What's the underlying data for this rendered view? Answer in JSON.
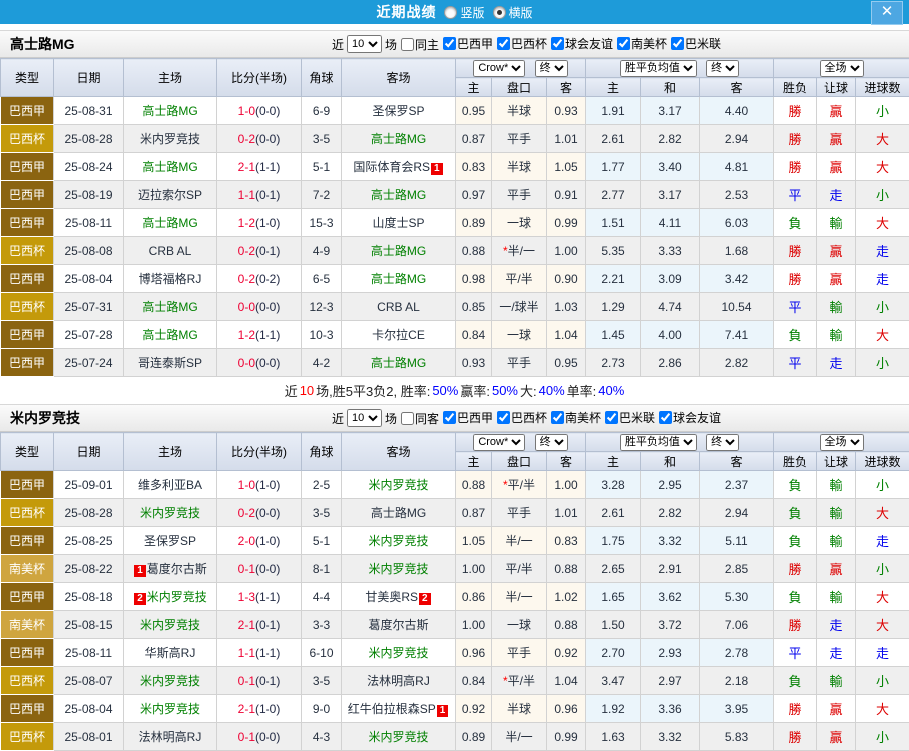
{
  "topbar": {
    "title": "近期战绩",
    "vertical": "竖版",
    "horizontal": "横版",
    "close": "✕"
  },
  "labels": {
    "near": "近",
    "games": "10",
    "games_suffix": "场"
  },
  "columns": {
    "type": "类型",
    "date": "日期",
    "home": "主场",
    "score": "比分(半场)",
    "corner": "角球",
    "away": "客场",
    "ah_home": "主",
    "ah_line": "盘口",
    "ah_away": "客",
    "eu_home": "主",
    "eu_draw": "和",
    "eu_away": "客",
    "res_wdl": "胜负",
    "res_ah": "让球",
    "res_goal": "进球数"
  },
  "dropdowns": {
    "odds_source": "Crow*",
    "final": "终",
    "wdl_avg": "胜平负均值",
    "full": "全场"
  },
  "league_colors": {
    "巴西甲": "#8B6410",
    "巴西杯": "#C49A0A",
    "南美杯": "#CFA53F"
  },
  "result_colors": {
    "red": "#DD0000",
    "blue": "#0000EE",
    "green": "#008000"
  },
  "score_colors": {
    "fulltime": "#EE0033",
    "halftime": "#222A44"
  },
  "sections": [
    {
      "team": "高士路MG",
      "filter": {
        "same": "同主",
        "same_checked": false,
        "leagues": [
          "巴西甲",
          "巴西杯",
          "球会友谊",
          "南美杯",
          "巴米联"
        ]
      },
      "rows": [
        {
          "lg": "巴西甲",
          "date": "25-08-31",
          "home": {
            "n": "高士路MG",
            "g": true
          },
          "ft": "1-0",
          "ht": "(0-0)",
          "cn": "6-9",
          "away": {
            "n": "圣保罗SP"
          },
          "ah": [
            "0.95",
            "半球",
            "0.93"
          ],
          "star": false,
          "eu": [
            "1.91",
            "3.17",
            "4.40"
          ],
          "res": [
            [
              "勝",
              "red"
            ],
            [
              "贏",
              "red"
            ],
            [
              "小",
              "green"
            ]
          ]
        },
        {
          "lg": "巴西杯",
          "date": "25-08-28",
          "home": {
            "n": "米内罗竞技"
          },
          "ft": "0-2",
          "ht": "(0-0)",
          "cn": "3-5",
          "away": {
            "n": "高士路MG",
            "g": true
          },
          "ah": [
            "0.87",
            "平手",
            "1.01"
          ],
          "star": false,
          "eu": [
            "2.61",
            "2.82",
            "2.94"
          ],
          "res": [
            [
              "勝",
              "red"
            ],
            [
              "贏",
              "red"
            ],
            [
              "大",
              "red"
            ]
          ]
        },
        {
          "lg": "巴西甲",
          "date": "25-08-24",
          "home": {
            "n": "高士路MG",
            "g": true
          },
          "ft": "2-1",
          "ht": "(1-1)",
          "cn": "5-1",
          "away": {
            "n": "国际体育会RS",
            "ba": "1"
          },
          "ah": [
            "0.83",
            "半球",
            "1.05"
          ],
          "star": false,
          "eu": [
            "1.77",
            "3.40",
            "4.81"
          ],
          "res": [
            [
              "勝",
              "red"
            ],
            [
              "贏",
              "red"
            ],
            [
              "大",
              "red"
            ]
          ]
        },
        {
          "lg": "巴西甲",
          "date": "25-08-19",
          "home": {
            "n": "迈拉索尔SP"
          },
          "ft": "1-1",
          "ht": "(0-1)",
          "cn": "7-2",
          "away": {
            "n": "高士路MG",
            "g": true
          },
          "ah": [
            "0.97",
            "平手",
            "0.91"
          ],
          "star": false,
          "eu": [
            "2.77",
            "3.17",
            "2.53"
          ],
          "res": [
            [
              "平",
              "blue"
            ],
            [
              "走",
              "blue"
            ],
            [
              "小",
              "green"
            ]
          ]
        },
        {
          "lg": "巴西甲",
          "date": "25-08-11",
          "home": {
            "n": "高士路MG",
            "g": true
          },
          "ft": "1-2",
          "ht": "(1-0)",
          "cn": "15-3",
          "away": {
            "n": "山度士SP"
          },
          "ah": [
            "0.89",
            "一球",
            "0.99"
          ],
          "star": false,
          "eu": [
            "1.51",
            "4.11",
            "6.03"
          ],
          "res": [
            [
              "負",
              "green"
            ],
            [
              "輸",
              "green"
            ],
            [
              "大",
              "red"
            ]
          ]
        },
        {
          "lg": "巴西杯",
          "date": "25-08-08",
          "home": {
            "n": "CRB AL"
          },
          "ft": "0-2",
          "ht": "(0-1)",
          "cn": "4-9",
          "away": {
            "n": "高士路MG",
            "g": true
          },
          "ah": [
            "0.88",
            "半/一",
            "1.00"
          ],
          "star": true,
          "eu": [
            "5.35",
            "3.33",
            "1.68"
          ],
          "res": [
            [
              "勝",
              "red"
            ],
            [
              "贏",
              "red"
            ],
            [
              "走",
              "blue"
            ]
          ]
        },
        {
          "lg": "巴西甲",
          "date": "25-08-04",
          "home": {
            "n": "博塔福格RJ"
          },
          "ft": "0-2",
          "ht": "(0-2)",
          "cn": "6-5",
          "away": {
            "n": "高士路MG",
            "g": true
          },
          "ah": [
            "0.98",
            "平/半",
            "0.90"
          ],
          "star": false,
          "eu": [
            "2.21",
            "3.09",
            "3.42"
          ],
          "res": [
            [
              "勝",
              "red"
            ],
            [
              "贏",
              "red"
            ],
            [
              "走",
              "blue"
            ]
          ]
        },
        {
          "lg": "巴西杯",
          "date": "25-07-31",
          "home": {
            "n": "高士路MG",
            "g": true
          },
          "ft": "0-0",
          "ht": "(0-0)",
          "cn": "12-3",
          "away": {
            "n": "CRB AL"
          },
          "ah": [
            "0.85",
            "一/球半",
            "1.03"
          ],
          "star": false,
          "eu": [
            "1.29",
            "4.74",
            "10.54"
          ],
          "res": [
            [
              "平",
              "blue"
            ],
            [
              "輸",
              "green"
            ],
            [
              "小",
              "green"
            ]
          ]
        },
        {
          "lg": "巴西甲",
          "date": "25-07-28",
          "home": {
            "n": "高士路MG",
            "g": true
          },
          "ft": "1-2",
          "ht": "(1-1)",
          "cn": "10-3",
          "away": {
            "n": "卡尔拉CE"
          },
          "ah": [
            "0.84",
            "一球",
            "1.04"
          ],
          "star": false,
          "eu": [
            "1.45",
            "4.00",
            "7.41"
          ],
          "res": [
            [
              "負",
              "green"
            ],
            [
              "輸",
              "green"
            ],
            [
              "大",
              "red"
            ]
          ]
        },
        {
          "lg": "巴西甲",
          "date": "25-07-24",
          "home": {
            "n": "哥连泰斯SP"
          },
          "ft": "0-0",
          "ht": "(0-0)",
          "cn": "4-2",
          "away": {
            "n": "高士路MG",
            "g": true
          },
          "ah": [
            "0.93",
            "平手",
            "0.95"
          ],
          "star": false,
          "eu": [
            "2.73",
            "2.86",
            "2.82"
          ],
          "res": [
            [
              "平",
              "blue"
            ],
            [
              "走",
              "blue"
            ],
            [
              "小",
              "green"
            ]
          ]
        }
      ],
      "summary": [
        [
          "近",
          "k"
        ],
        [
          "10",
          "r"
        ],
        [
          "场,胜5平3负2, 胜率:",
          "k"
        ],
        [
          "50%",
          "b"
        ],
        [
          " 赢率:",
          "k"
        ],
        [
          "50%",
          "b"
        ],
        [
          " 大:",
          "k"
        ],
        [
          "40%",
          "b"
        ],
        [
          " 单率:",
          "k"
        ],
        [
          "40%",
          "b"
        ]
      ]
    },
    {
      "team": "米内罗竞技",
      "filter": {
        "same": "同客",
        "same_checked": false,
        "leagues": [
          "巴西甲",
          "巴西杯",
          "南美杯",
          "巴米联",
          "球会友谊"
        ]
      },
      "rows": [
        {
          "lg": "巴西甲",
          "date": "25-09-01",
          "home": {
            "n": "维多利亚BA"
          },
          "ft": "1-0",
          "ht": "(1-0)",
          "cn": "2-5",
          "away": {
            "n": "米内罗竞技",
            "g": true
          },
          "ah": [
            "0.88",
            "平/半",
            "1.00"
          ],
          "star": true,
          "eu": [
            "3.28",
            "2.95",
            "2.37"
          ],
          "res": [
            [
              "負",
              "green"
            ],
            [
              "輸",
              "green"
            ],
            [
              "小",
              "green"
            ]
          ]
        },
        {
          "lg": "巴西杯",
          "date": "25-08-28",
          "home": {
            "n": "米内罗竞技",
            "g": true
          },
          "ft": "0-2",
          "ht": "(0-0)",
          "cn": "3-5",
          "away": {
            "n": "高士路MG"
          },
          "ah": [
            "0.87",
            "平手",
            "1.01"
          ],
          "star": false,
          "eu": [
            "2.61",
            "2.82",
            "2.94"
          ],
          "res": [
            [
              "負",
              "green"
            ],
            [
              "輸",
              "green"
            ],
            [
              "大",
              "red"
            ]
          ]
        },
        {
          "lg": "巴西甲",
          "date": "25-08-25",
          "home": {
            "n": "圣保罗SP"
          },
          "ft": "2-0",
          "ht": "(1-0)",
          "cn": "5-1",
          "away": {
            "n": "米内罗竞技",
            "g": true
          },
          "ah": [
            "1.05",
            "半/一",
            "0.83"
          ],
          "star": false,
          "eu": [
            "1.75",
            "3.32",
            "5.11"
          ],
          "res": [
            [
              "負",
              "green"
            ],
            [
              "輸",
              "green"
            ],
            [
              "走",
              "blue"
            ]
          ]
        },
        {
          "lg": "南美杯",
          "date": "25-08-22",
          "home": {
            "n": "葛度尔古斯",
            "bb": "1"
          },
          "ft": "0-1",
          "ht": "(0-0)",
          "cn": "8-1",
          "away": {
            "n": "米内罗竞技",
            "g": true
          },
          "ah": [
            "1.00",
            "平/半",
            "0.88"
          ],
          "star": false,
          "eu": [
            "2.65",
            "2.91",
            "2.85"
          ],
          "res": [
            [
              "勝",
              "red"
            ],
            [
              "贏",
              "red"
            ],
            [
              "小",
              "green"
            ]
          ]
        },
        {
          "lg": "巴西甲",
          "date": "25-08-18",
          "home": {
            "n": "米内罗竞技",
            "g": true,
            "bb": "2"
          },
          "ft": "1-3",
          "ht": "(1-1)",
          "cn": "4-4",
          "away": {
            "n": "甘美奥RS",
            "ba": "2"
          },
          "ah": [
            "0.86",
            "半/一",
            "1.02"
          ],
          "star": false,
          "eu": [
            "1.65",
            "3.62",
            "5.30"
          ],
          "res": [
            [
              "負",
              "green"
            ],
            [
              "輸",
              "green"
            ],
            [
              "大",
              "red"
            ]
          ]
        },
        {
          "lg": "南美杯",
          "date": "25-08-15",
          "home": {
            "n": "米内罗竞技",
            "g": true
          },
          "ft": "2-1",
          "ht": "(0-1)",
          "cn": "3-3",
          "away": {
            "n": "葛度尔古斯"
          },
          "ah": [
            "1.00",
            "一球",
            "0.88"
          ],
          "star": false,
          "eu": [
            "1.50",
            "3.72",
            "7.06"
          ],
          "res": [
            [
              "勝",
              "red"
            ],
            [
              "走",
              "blue"
            ],
            [
              "大",
              "red"
            ]
          ]
        },
        {
          "lg": "巴西甲",
          "date": "25-08-11",
          "home": {
            "n": "华斯高RJ"
          },
          "ft": "1-1",
          "ht": "(1-1)",
          "cn": "6-10",
          "away": {
            "n": "米内罗竞技",
            "g": true
          },
          "ah": [
            "0.96",
            "平手",
            "0.92"
          ],
          "star": false,
          "eu": [
            "2.70",
            "2.93",
            "2.78"
          ],
          "res": [
            [
              "平",
              "blue"
            ],
            [
              "走",
              "blue"
            ],
            [
              "走",
              "blue"
            ]
          ]
        },
        {
          "lg": "巴西杯",
          "date": "25-08-07",
          "home": {
            "n": "米内罗竞技",
            "g": true
          },
          "ft": "0-1",
          "ht": "(0-1)",
          "cn": "3-5",
          "away": {
            "n": "法林明高RJ"
          },
          "ah": [
            "0.84",
            "平/半",
            "1.04"
          ],
          "star": true,
          "eu": [
            "3.47",
            "2.97",
            "2.18"
          ],
          "res": [
            [
              "負",
              "green"
            ],
            [
              "輸",
              "green"
            ],
            [
              "小",
              "green"
            ]
          ]
        },
        {
          "lg": "巴西甲",
          "date": "25-08-04",
          "home": {
            "n": "米内罗竞技",
            "g": true
          },
          "ft": "2-1",
          "ht": "(1-0)",
          "cn": "9-0",
          "away": {
            "n": "红牛伯拉根森SP",
            "ba": "1"
          },
          "ah": [
            "0.92",
            "半球",
            "0.96"
          ],
          "star": false,
          "eu": [
            "1.92",
            "3.36",
            "3.95"
          ],
          "res": [
            [
              "勝",
              "red"
            ],
            [
              "贏",
              "red"
            ],
            [
              "大",
              "red"
            ]
          ]
        },
        {
          "lg": "巴西杯",
          "date": "25-08-01",
          "home": {
            "n": "法林明高RJ"
          },
          "ft": "0-1",
          "ht": "(0-0)",
          "cn": "4-3",
          "away": {
            "n": "米内罗竞技",
            "g": true
          },
          "ah": [
            "0.89",
            "半/一",
            "0.99"
          ],
          "star": false,
          "eu": [
            "1.63",
            "3.32",
            "5.83"
          ],
          "res": [
            [
              "勝",
              "red"
            ],
            [
              "贏",
              "red"
            ],
            [
              "小",
              "green"
            ]
          ]
        }
      ]
    }
  ]
}
